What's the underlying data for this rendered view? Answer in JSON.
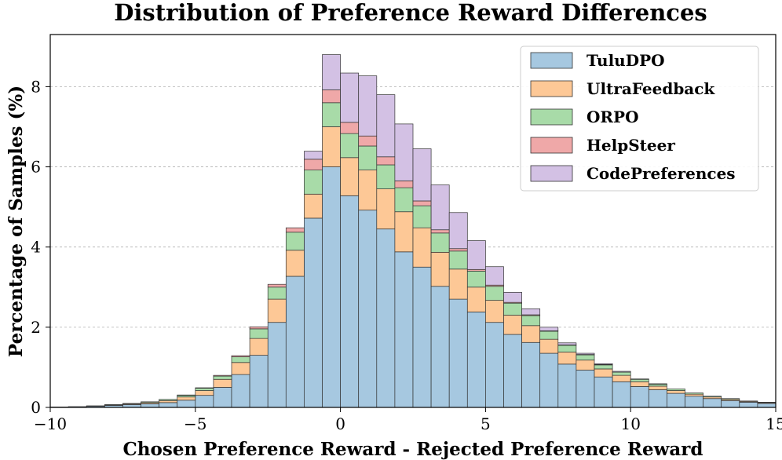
{
  "chart_data": {
    "type": "bar",
    "stacked": true,
    "title": "Distribution of Preference Reward Differences",
    "xlabel": "Chosen Preference Reward - Rejected Preference Reward",
    "ylabel": "Percentage of Samples (%)",
    "xlim": [
      -10,
      15
    ],
    "ylim": [
      0,
      9.3
    ],
    "x_ticks": [
      -10,
      -5,
      0,
      5,
      10,
      15
    ],
    "x_tick_labels": [
      "−10",
      "−5",
      "0",
      "5",
      "10",
      "15"
    ],
    "y_ticks": [
      0,
      2,
      4,
      6,
      8
    ],
    "y_tick_labels": [
      "0",
      "2",
      "4",
      "6",
      "8"
    ],
    "grid": "horizontal dashed",
    "legend_position": "top-right",
    "bin_edges": [
      -10.0,
      -9.375,
      -8.75,
      -8.125,
      -7.5,
      -6.875,
      -6.25,
      -5.625,
      -5.0,
      -4.375,
      -3.75,
      -3.125,
      -2.5,
      -1.875,
      -1.25,
      -0.625,
      0.0,
      0.625,
      1.25,
      1.875,
      2.5,
      3.125,
      3.75,
      4.375,
      5.0,
      5.625,
      6.25,
      6.875,
      7.5,
      8.125,
      8.75,
      9.375,
      10.0,
      10.625,
      11.25,
      11.875,
      12.5,
      13.125,
      13.75,
      14.375,
      15.0
    ],
    "series": [
      {
        "name": "TuluDPO",
        "color": "#a6c8e0",
        "values": [
          0.01,
          0.02,
          0.03,
          0.05,
          0.07,
          0.09,
          0.12,
          0.18,
          0.3,
          0.5,
          0.82,
          1.3,
          2.12,
          3.27,
          4.72,
          6.0,
          5.28,
          4.92,
          4.45,
          3.88,
          3.5,
          3.02,
          2.7,
          2.38,
          2.12,
          1.82,
          1.62,
          1.35,
          1.08,
          0.93,
          0.76,
          0.64,
          0.52,
          0.44,
          0.35,
          0.28,
          0.22,
          0.17,
          0.13,
          0.1
        ]
      },
      {
        "name": "UltraFeedback",
        "color": "#fdc896",
        "values": [
          0.0,
          0.0,
          0.01,
          0.01,
          0.02,
          0.03,
          0.05,
          0.08,
          0.12,
          0.2,
          0.3,
          0.42,
          0.58,
          0.65,
          0.6,
          1.0,
          0.95,
          1.0,
          1.0,
          1.0,
          0.98,
          0.85,
          0.75,
          0.62,
          0.55,
          0.48,
          0.42,
          0.35,
          0.3,
          0.25,
          0.2,
          0.16,
          0.12,
          0.09,
          0.07,
          0.05,
          0.04,
          0.03,
          0.02,
          0.02
        ]
      },
      {
        "name": "ORPO",
        "color": "#a8dba8",
        "values": [
          0.0,
          0.0,
          0.0,
          0.01,
          0.01,
          0.02,
          0.03,
          0.04,
          0.06,
          0.08,
          0.14,
          0.24,
          0.3,
          0.45,
          0.6,
          0.6,
          0.6,
          0.6,
          0.6,
          0.6,
          0.55,
          0.48,
          0.45,
          0.4,
          0.35,
          0.3,
          0.25,
          0.2,
          0.17,
          0.13,
          0.1,
          0.08,
          0.06,
          0.05,
          0.04,
          0.03,
          0.02,
          0.02,
          0.01,
          0.01
        ]
      },
      {
        "name": "HelpSteer",
        "color": "#efa8a8",
        "values": [
          0.0,
          0.0,
          0.0,
          0.0,
          0.0,
          0.0,
          0.0,
          0.01,
          0.01,
          0.02,
          0.03,
          0.05,
          0.07,
          0.11,
          0.27,
          0.32,
          0.28,
          0.25,
          0.2,
          0.17,
          0.12,
          0.08,
          0.06,
          0.04,
          0.03,
          0.02,
          0.02,
          0.01,
          0.01,
          0.01,
          0.01,
          0.0,
          0.0,
          0.0,
          0.0,
          0.0,
          0.0,
          0.0,
          0.0,
          0.0
        ]
      },
      {
        "name": "CodePreferences",
        "color": "#d3c1e4",
        "values": [
          0.0,
          0.0,
          0.0,
          0.0,
          0.0,
          0.0,
          0.0,
          0.0,
          0.0,
          0.0,
          0.0,
          0.0,
          0.0,
          0.0,
          0.2,
          0.88,
          1.23,
          1.5,
          1.55,
          1.42,
          1.3,
          1.12,
          0.9,
          0.72,
          0.46,
          0.25,
          0.15,
          0.09,
          0.05,
          0.03,
          0.02,
          0.02,
          0.01,
          0.01,
          0.0,
          0.0,
          0.0,
          0.0,
          0.0,
          0.0
        ]
      }
    ]
  }
}
